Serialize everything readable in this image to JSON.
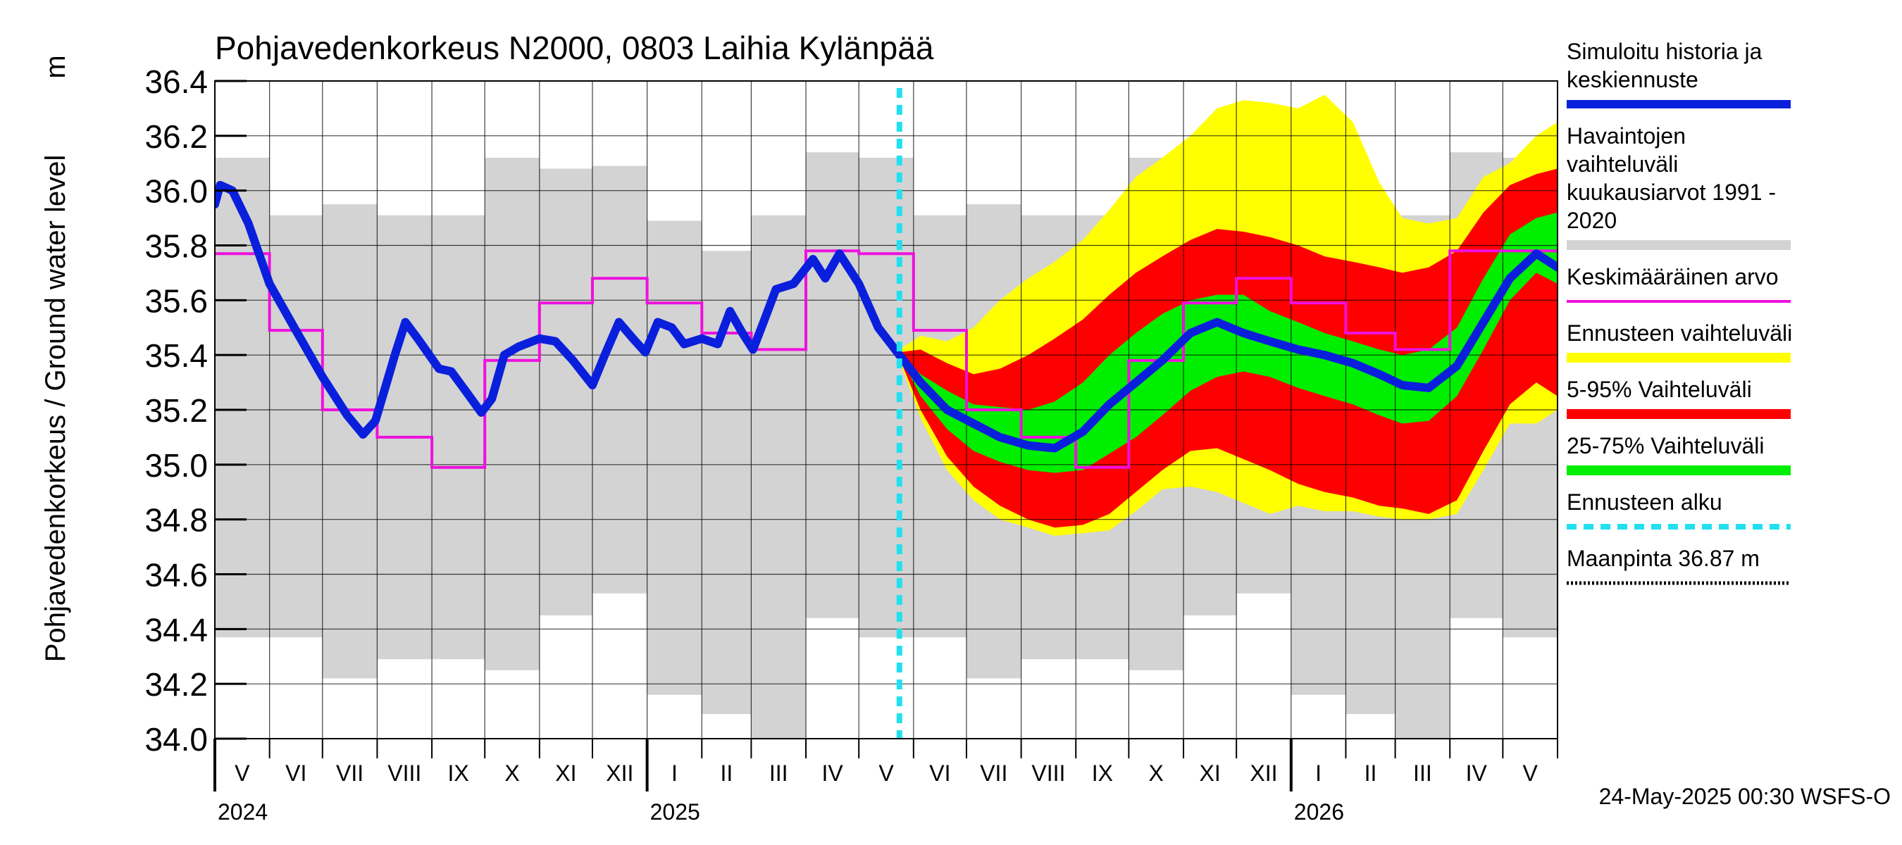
{
  "chart_data": {
    "type": "area",
    "title": "Pohjavedenkorkeus N2000, 0803 Laihia Kylänpää",
    "ylabel": "Pohjavedenkorkeus / Ground water level",
    "yunit": "m",
    "ylim": [
      34.0,
      36.4
    ],
    "yticks": [
      "34.0",
      "34.2",
      "34.4",
      "34.6",
      "34.8",
      "35.0",
      "35.2",
      "35.4",
      "35.6",
      "35.8",
      "36.0",
      "36.2",
      "36.4"
    ],
    "x_range": [
      "2024-05-01",
      "2026-06-01"
    ],
    "month_ticks": [
      "2024-05-01",
      "2024-06-01",
      "2024-07-01",
      "2024-08-01",
      "2024-09-01",
      "2024-10-01",
      "2024-11-01",
      "2024-12-01",
      "2025-01-01",
      "2025-02-01",
      "2025-03-01",
      "2025-04-01",
      "2025-05-01",
      "2025-06-01",
      "2025-07-01",
      "2025-08-01",
      "2025-09-01",
      "2025-10-01",
      "2025-11-01",
      "2025-12-01",
      "2026-01-01",
      "2026-02-01",
      "2026-03-01",
      "2026-04-01",
      "2026-05-01",
      "2026-06-01"
    ],
    "month_labels": [
      "V",
      "VI",
      "VII",
      "VIII",
      "IX",
      "X",
      "XI",
      "XII",
      "I",
      "II",
      "III",
      "IV",
      "V",
      "VI",
      "VII",
      "VIII",
      "IX",
      "X",
      "XI",
      "XII",
      "I",
      "II",
      "III",
      "IV",
      "V"
    ],
    "year_labels": [
      {
        "date": "2024-05-01",
        "text": "2024"
      },
      {
        "date": "2025-01-01",
        "text": "2025"
      },
      {
        "date": "2026-01-01",
        "text": "2026"
      }
    ],
    "forecast_start": "2025-05-24",
    "ground_level": 36.87,
    "grid": true,
    "legend_position": "right",
    "colors": {
      "history_band": "#d3d3d3",
      "simulated": "#0a1fdc",
      "mean": "#ee10dd",
      "forecast_range": "#ffff00",
      "p5_95": "#ff0000",
      "p25_75": "#00ee00",
      "forecast_start": "#22e0f0",
      "ground": "#000000"
    },
    "history_band_monthly": [
      {
        "month": "2024-05",
        "min": 34.37,
        "max": 36.12
      },
      {
        "month": "2024-06",
        "min": 34.37,
        "max": 35.91
      },
      {
        "month": "2024-07",
        "min": 34.22,
        "max": 35.95
      },
      {
        "month": "2024-08",
        "min": 34.29,
        "max": 35.91
      },
      {
        "month": "2024-09",
        "min": 34.29,
        "max": 35.91
      },
      {
        "month": "2024-10",
        "min": 34.25,
        "max": 36.12
      },
      {
        "month": "2024-11",
        "min": 34.45,
        "max": 36.08
      },
      {
        "month": "2024-12",
        "min": 34.53,
        "max": 36.09
      },
      {
        "month": "2025-01",
        "min": 34.16,
        "max": 35.89
      },
      {
        "month": "2025-02",
        "min": 34.09,
        "max": 35.78
      },
      {
        "month": "2025-03",
        "min": 34.0,
        "max": 35.91
      },
      {
        "month": "2025-04",
        "min": 34.44,
        "max": 36.14
      },
      {
        "month": "2025-05",
        "min": 34.37,
        "max": 36.12
      },
      {
        "month": "2025-06",
        "min": 34.37,
        "max": 35.91
      },
      {
        "month": "2025-07",
        "min": 34.22,
        "max": 35.95
      },
      {
        "month": "2025-08",
        "min": 34.29,
        "max": 35.91
      },
      {
        "month": "2025-09",
        "min": 34.29,
        "max": 35.91
      },
      {
        "month": "2025-10",
        "min": 34.25,
        "max": 36.12
      },
      {
        "month": "2025-11",
        "min": 34.45,
        "max": 36.08
      },
      {
        "month": "2025-12",
        "min": 34.53,
        "max": 36.09
      },
      {
        "month": "2026-01",
        "min": 34.16,
        "max": 35.89
      },
      {
        "month": "2026-02",
        "min": 34.09,
        "max": 35.78
      },
      {
        "month": "2026-03",
        "min": 34.0,
        "max": 35.91
      },
      {
        "month": "2026-04",
        "min": 34.44,
        "max": 36.14
      },
      {
        "month": "2026-05",
        "min": 34.37,
        "max": 36.12
      }
    ],
    "mean_monthly": [
      {
        "month": "2024-05",
        "value": 35.77
      },
      {
        "month": "2024-06",
        "value": 35.49
      },
      {
        "month": "2024-07",
        "value": 35.2
      },
      {
        "month": "2024-08",
        "value": 35.1
      },
      {
        "month": "2024-09",
        "value": 34.99
      },
      {
        "month": "2024-10",
        "value": 35.38
      },
      {
        "month": "2024-11",
        "value": 35.59
      },
      {
        "month": "2024-12",
        "value": 35.68
      },
      {
        "month": "2025-01",
        "value": 35.59
      },
      {
        "month": "2025-02",
        "value": 35.48
      },
      {
        "month": "2025-03",
        "value": 35.42
      },
      {
        "month": "2025-04",
        "value": 35.78
      },
      {
        "month": "2025-05",
        "value": 35.77
      },
      {
        "month": "2025-06",
        "value": 35.49
      },
      {
        "month": "2025-07",
        "value": 35.2
      },
      {
        "month": "2025-08",
        "value": 35.1
      },
      {
        "month": "2025-09",
        "value": 34.99
      },
      {
        "month": "2025-10",
        "value": 35.38
      },
      {
        "month": "2025-11",
        "value": 35.59
      },
      {
        "month": "2025-12",
        "value": 35.68
      },
      {
        "month": "2026-01",
        "value": 35.59
      },
      {
        "month": "2026-02",
        "value": 35.48
      },
      {
        "month": "2026-03",
        "value": 35.42
      },
      {
        "month": "2026-04",
        "value": 35.78
      },
      {
        "month": "2026-05",
        "value": 35.78
      }
    ],
    "simulated_history": [
      {
        "date": "2024-05-01",
        "value": 35.95
      },
      {
        "date": "2024-05-04",
        "value": 36.02
      },
      {
        "date": "2024-05-11",
        "value": 36.0
      },
      {
        "date": "2024-05-20",
        "value": 35.88
      },
      {
        "date": "2024-06-01",
        "value": 35.66
      },
      {
        "date": "2024-06-15",
        "value": 35.5
      },
      {
        "date": "2024-07-01",
        "value": 35.32
      },
      {
        "date": "2024-07-15",
        "value": 35.18
      },
      {
        "date": "2024-07-24",
        "value": 35.11
      },
      {
        "date": "2024-07-31",
        "value": 35.16
      },
      {
        "date": "2024-08-06",
        "value": 35.29
      },
      {
        "date": "2024-08-11",
        "value": 35.4
      },
      {
        "date": "2024-08-17",
        "value": 35.52
      },
      {
        "date": "2024-08-24",
        "value": 35.46
      },
      {
        "date": "2024-09-05",
        "value": 35.35
      },
      {
        "date": "2024-09-12",
        "value": 35.34
      },
      {
        "date": "2024-09-20",
        "value": 35.27
      },
      {
        "date": "2024-09-29",
        "value": 35.19
      },
      {
        "date": "2024-10-05",
        "value": 35.24
      },
      {
        "date": "2024-10-12",
        "value": 35.4
      },
      {
        "date": "2024-10-20",
        "value": 35.43
      },
      {
        "date": "2024-11-01",
        "value": 35.46
      },
      {
        "date": "2024-11-10",
        "value": 35.45
      },
      {
        "date": "2024-11-20",
        "value": 35.38
      },
      {
        "date": "2024-12-01",
        "value": 35.29
      },
      {
        "date": "2024-12-08",
        "value": 35.4
      },
      {
        "date": "2024-12-16",
        "value": 35.52
      },
      {
        "date": "2024-12-24",
        "value": 35.46
      },
      {
        "date": "2024-12-31",
        "value": 35.41
      },
      {
        "date": "2025-01-07",
        "value": 35.52
      },
      {
        "date": "2025-01-15",
        "value": 35.5
      },
      {
        "date": "2025-01-22",
        "value": 35.44
      },
      {
        "date": "2025-02-01",
        "value": 35.46
      },
      {
        "date": "2025-02-10",
        "value": 35.44
      },
      {
        "date": "2025-02-17",
        "value": 35.56
      },
      {
        "date": "2025-02-24",
        "value": 35.48
      },
      {
        "date": "2025-03-02",
        "value": 35.42
      },
      {
        "date": "2025-03-08",
        "value": 35.52
      },
      {
        "date": "2025-03-15",
        "value": 35.64
      },
      {
        "date": "2025-03-25",
        "value": 35.66
      },
      {
        "date": "2025-04-05",
        "value": 35.75
      },
      {
        "date": "2025-04-12",
        "value": 35.68
      },
      {
        "date": "2025-04-20",
        "value": 35.77
      },
      {
        "date": "2025-05-01",
        "value": 35.66
      },
      {
        "date": "2025-05-12",
        "value": 35.5
      },
      {
        "date": "2025-05-24",
        "value": 35.4
      }
    ],
    "forecast": [
      {
        "date": "2025-05-24",
        "median": 35.4,
        "p25": 35.4,
        "p75": 35.4,
        "p5": 35.39,
        "p95": 35.41,
        "min": 35.38,
        "max": 35.42
      },
      {
        "date": "2025-06-05",
        "median": 35.3,
        "p25": 35.25,
        "p75": 35.33,
        "p5": 35.2,
        "p95": 35.42,
        "min": 35.17,
        "max": 35.47
      },
      {
        "date": "2025-06-20",
        "median": 35.2,
        "p25": 35.13,
        "p75": 35.27,
        "p5": 35.03,
        "p95": 35.37,
        "min": 34.98,
        "max": 35.45
      },
      {
        "date": "2025-07-05",
        "median": 35.15,
        "p25": 35.05,
        "p75": 35.22,
        "p5": 34.92,
        "p95": 35.33,
        "min": 34.87,
        "max": 35.5
      },
      {
        "date": "2025-07-20",
        "median": 35.1,
        "p25": 35.01,
        "p75": 35.21,
        "p5": 34.85,
        "p95": 35.35,
        "min": 34.8,
        "max": 35.6
      },
      {
        "date": "2025-08-05",
        "median": 35.07,
        "p25": 34.98,
        "p75": 35.2,
        "p5": 34.8,
        "p95": 35.4,
        "min": 34.77,
        "max": 35.68
      },
      {
        "date": "2025-08-20",
        "median": 35.06,
        "p25": 34.97,
        "p75": 35.23,
        "p5": 34.77,
        "p95": 35.46,
        "min": 34.74,
        "max": 35.74
      },
      {
        "date": "2025-09-05",
        "median": 35.12,
        "p25": 34.98,
        "p75": 35.3,
        "p5": 34.78,
        "p95": 35.53,
        "min": 34.75,
        "max": 35.82
      },
      {
        "date": "2025-09-20",
        "median": 35.22,
        "p25": 35.04,
        "p75": 35.4,
        "p5": 34.82,
        "p95": 35.62,
        "min": 34.76,
        "max": 35.93
      },
      {
        "date": "2025-10-05",
        "median": 35.3,
        "p25": 35.1,
        "p75": 35.48,
        "p5": 34.9,
        "p95": 35.7,
        "min": 34.83,
        "max": 36.05
      },
      {
        "date": "2025-10-20",
        "median": 35.38,
        "p25": 35.18,
        "p75": 35.55,
        "p5": 34.98,
        "p95": 35.76,
        "min": 34.91,
        "max": 36.12
      },
      {
        "date": "2025-11-05",
        "median": 35.48,
        "p25": 35.27,
        "p75": 35.6,
        "p5": 35.05,
        "p95": 35.82,
        "min": 34.92,
        "max": 36.2
      },
      {
        "date": "2025-11-20",
        "median": 35.52,
        "p25": 35.32,
        "p75": 35.62,
        "p5": 35.06,
        "p95": 35.86,
        "min": 34.9,
        "max": 36.3
      },
      {
        "date": "2025-12-05",
        "median": 35.48,
        "p25": 35.34,
        "p75": 35.62,
        "p5": 35.02,
        "p95": 35.85,
        "min": 34.86,
        "max": 36.33
      },
      {
        "date": "2025-12-20",
        "median": 35.45,
        "p25": 35.32,
        "p75": 35.56,
        "p5": 34.98,
        "p95": 35.83,
        "min": 34.82,
        "max": 36.32
      },
      {
        "date": "2026-01-05",
        "median": 35.42,
        "p25": 35.28,
        "p75": 35.52,
        "p5": 34.93,
        "p95": 35.8,
        "min": 34.85,
        "max": 36.3
      },
      {
        "date": "2026-01-20",
        "median": 35.4,
        "p25": 35.25,
        "p75": 35.48,
        "p5": 34.9,
        "p95": 35.76,
        "min": 34.83,
        "max": 36.35
      },
      {
        "date": "2026-02-05",
        "median": 35.37,
        "p25": 35.22,
        "p75": 35.45,
        "p5": 34.88,
        "p95": 35.74,
        "min": 34.83,
        "max": 36.25
      },
      {
        "date": "2026-02-20",
        "median": 35.33,
        "p25": 35.18,
        "p75": 35.42,
        "p5": 34.85,
        "p95": 35.72,
        "min": 34.81,
        "max": 36.03
      },
      {
        "date": "2026-03-05",
        "median": 35.29,
        "p25": 35.15,
        "p75": 35.4,
        "p5": 34.84,
        "p95": 35.7,
        "min": 34.8,
        "max": 35.9
      },
      {
        "date": "2026-03-20",
        "median": 35.28,
        "p25": 35.16,
        "p75": 35.42,
        "p5": 34.82,
        "p95": 35.72,
        "min": 34.8,
        "max": 35.88
      },
      {
        "date": "2026-04-05",
        "median": 35.36,
        "p25": 35.25,
        "p75": 35.5,
        "p5": 34.87,
        "p95": 35.78,
        "min": 34.82,
        "max": 35.9
      },
      {
        "date": "2026-04-20",
        "median": 35.52,
        "p25": 35.42,
        "p75": 35.68,
        "p5": 35.05,
        "p95": 35.92,
        "min": 34.98,
        "max": 36.05
      },
      {
        "date": "2026-05-05",
        "median": 35.68,
        "p25": 35.6,
        "p75": 35.84,
        "p5": 35.22,
        "p95": 36.02,
        "min": 35.15,
        "max": 36.1
      },
      {
        "date": "2026-05-20",
        "median": 35.77,
        "p25": 35.7,
        "p75": 35.9,
        "p5": 35.3,
        "p95": 36.06,
        "min": 35.15,
        "max": 36.2
      },
      {
        "date": "2026-06-01",
        "median": 35.72,
        "p25": 35.66,
        "p75": 35.92,
        "p5": 35.25,
        "p95": 36.08,
        "min": 35.2,
        "max": 36.25
      }
    ],
    "legend": [
      {
        "key": "sim",
        "label": "Simuloitu historia ja keskiennuste",
        "style": "thick"
      },
      {
        "key": "hist",
        "label": "Havaintojen vaihteluväli kuukausiarvot 1991 - 2020",
        "style": "band"
      },
      {
        "key": "mean",
        "label": "Keskimääräinen arvo",
        "style": "line"
      },
      {
        "key": "fc",
        "label": "Ennusteen vaihteluväli",
        "style": "band"
      },
      {
        "key": "p595",
        "label": "5-95% Vaihteluväli",
        "style": "band"
      },
      {
        "key": "p2575",
        "label": "25-75% Vaihteluväli",
        "style": "band"
      },
      {
        "key": "start",
        "label": "Ennusteen alku",
        "style": "dashed"
      },
      {
        "key": "ground",
        "label": "Maanpinta 36.87 m",
        "style": "dotted"
      }
    ],
    "footer": "24-May-2025 00:30 WSFS-O"
  }
}
